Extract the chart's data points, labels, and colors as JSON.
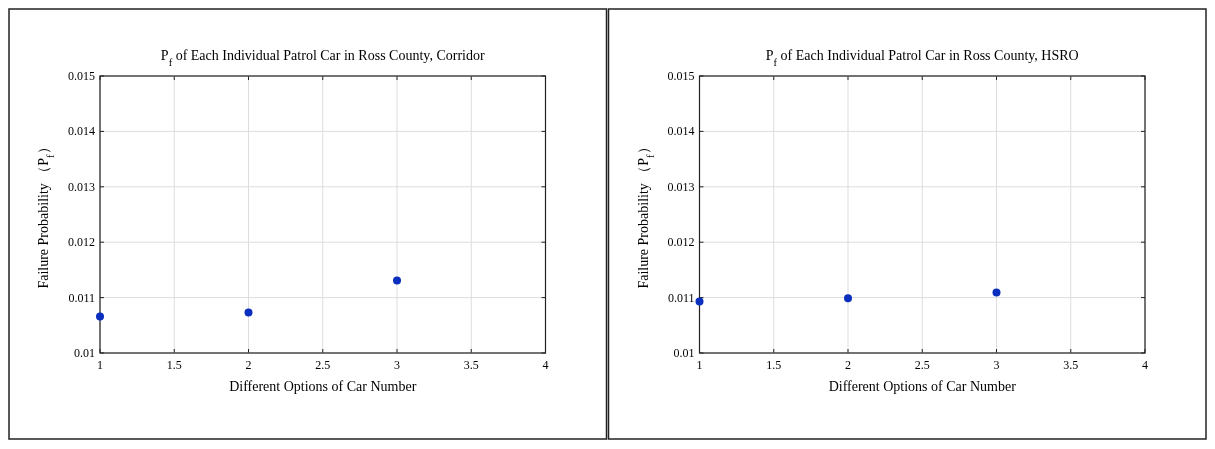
{
  "chart_data": [
    {
      "type": "scatter",
      "title": "P$_{f}$ of Each Individual Patrol Car in Ross County, Corridor",
      "xlabel": "Different Options of Car Number",
      "ylabel": "Failure Probability （P$_{f}$）",
      "x": [
        1,
        2,
        3
      ],
      "series": [
        {
          "color": "#0a2fbf",
          "values": [
            0.01066,
            0.01073,
            0.01131
          ]
        }
      ],
      "xlim": [
        1,
        4
      ],
      "xticks": [
        1,
        1.5,
        2,
        2.5,
        3,
        3.5,
        4
      ],
      "ylim": [
        0.01,
        0.015
      ],
      "yticks": [
        0.01,
        0.011,
        0.012,
        0.013,
        0.014,
        0.015
      ],
      "grid": true,
      "marker": "circle"
    },
    {
      "type": "scatter",
      "title": "P$_{f}$ of Each Individual Patrol Car in Ross County, HSRO",
      "xlabel": "Different Options of Car Number",
      "ylabel": "Failure Probability （P$_{f}$）",
      "x": [
        1,
        2,
        3
      ],
      "series": [
        {
          "color": "#0a2fbf",
          "values": [
            0.01093,
            0.01099,
            0.01109
          ]
        }
      ],
      "xlim": [
        1,
        4
      ],
      "xticks": [
        1,
        1.5,
        2,
        2.5,
        3,
        3.5,
        4
      ],
      "ylim": [
        0.01,
        0.015
      ],
      "yticks": [
        0.01,
        0.011,
        0.012,
        0.013,
        0.014,
        0.015
      ],
      "grid": true,
      "marker": "circle"
    }
  ]
}
